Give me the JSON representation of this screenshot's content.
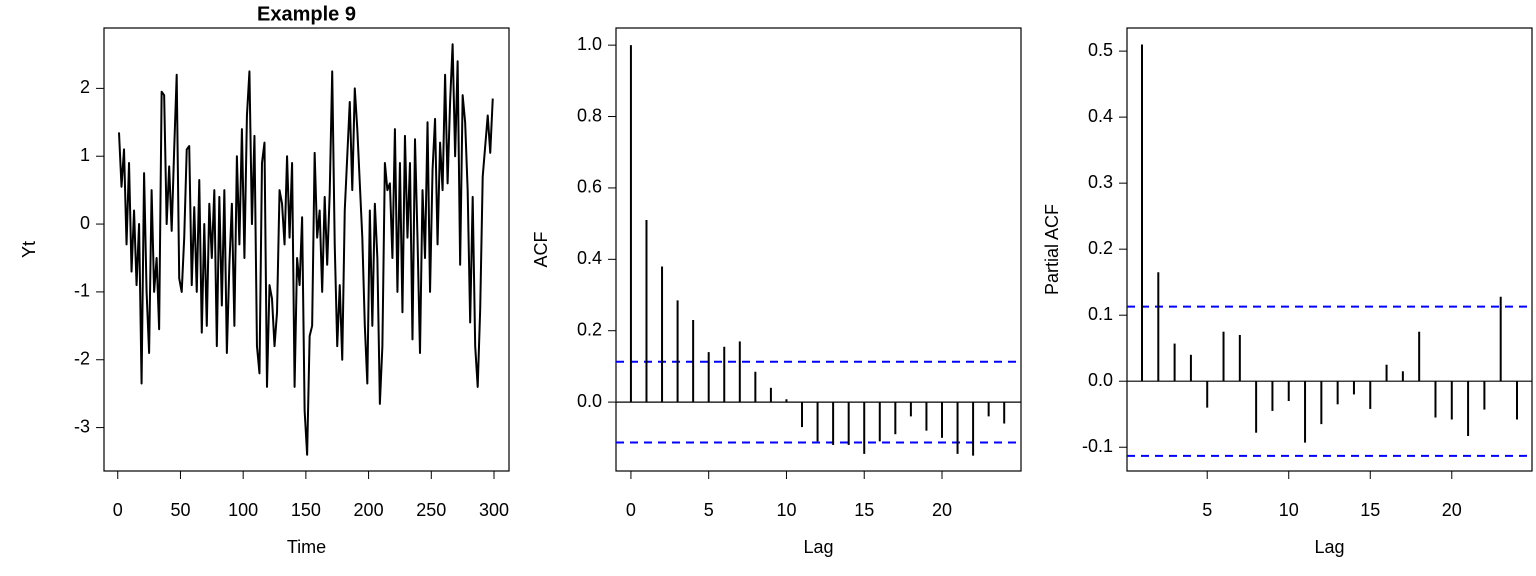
{
  "chart_data": [
    {
      "type": "line",
      "title": "Example 9",
      "xlabel": "Time",
      "ylabel": "Yt",
      "color": "#000000",
      "x": [
        1,
        3,
        5,
        7,
        9,
        11,
        13,
        15,
        17,
        19,
        21,
        23,
        25,
        27,
        29,
        31,
        33,
        35,
        37,
        39,
        41,
        43,
        45,
        47,
        49,
        51,
        53,
        55,
        57,
        59,
        61,
        63,
        65,
        67,
        69,
        71,
        73,
        75,
        77,
        79,
        81,
        83,
        85,
        87,
        89,
        91,
        93,
        95,
        97,
        99,
        101,
        103,
        105,
        107,
        109,
        111,
        113,
        115,
        117,
        119,
        121,
        123,
        125,
        127,
        129,
        131,
        133,
        135,
        137,
        139,
        141,
        143,
        145,
        147,
        149,
        151,
        153,
        155,
        157,
        159,
        161,
        163,
        165,
        167,
        169,
        171,
        173,
        175,
        177,
        179,
        181,
        183,
        185,
        187,
        189,
        191,
        193,
        195,
        197,
        199,
        201,
        203,
        205,
        207,
        209,
        211,
        213,
        215,
        217,
        219,
        221,
        223,
        225,
        227,
        229,
        231,
        233,
        235,
        237,
        239,
        241,
        243,
        245,
        247,
        249,
        251,
        253,
        255,
        257,
        259,
        261,
        263,
        265,
        267,
        269,
        271,
        273,
        275,
        277,
        279,
        281,
        283,
        285,
        287,
        289,
        291,
        293,
        295,
        297,
        299
      ],
      "values": [
        1.35,
        0.55,
        1.1,
        -0.3,
        0.9,
        -0.7,
        0.2,
        -0.9,
        0.0,
        -2.35,
        0.75,
        -1.0,
        -1.9,
        0.5,
        -1.0,
        -0.5,
        -1.55,
        1.95,
        1.9,
        0.0,
        0.85,
        -0.1,
        1.1,
        2.2,
        -0.8,
        -1.0,
        -0.2,
        1.1,
        1.15,
        -0.9,
        0.25,
        -1.0,
        0.65,
        -1.6,
        0.0,
        -1.5,
        0.3,
        -0.5,
        0.5,
        -1.8,
        0.4,
        -1.2,
        0.5,
        -1.9,
        -0.6,
        0.3,
        -1.5,
        1.0,
        -0.3,
        1.4,
        -0.5,
        1.6,
        2.25,
        0.0,
        1.3,
        -1.8,
        -2.2,
        0.9,
        1.2,
        -2.4,
        -0.9,
        -1.1,
        -1.8,
        -1.3,
        0.5,
        0.3,
        -0.3,
        1.0,
        -0.2,
        0.9,
        -2.4,
        -0.5,
        -0.9,
        0.1,
        -2.75,
        -3.4,
        -1.65,
        -1.5,
        1.05,
        -0.2,
        0.2,
        -1.0,
        0.4,
        -0.6,
        0.45,
        2.25,
        -0.3,
        -1.8,
        -0.9,
        -2.0,
        0.2,
        1.0,
        1.8,
        0.5,
        2.0,
        1.4,
        0.6,
        -0.2,
        -1.5,
        -2.35,
        0.2,
        -1.5,
        0.3,
        -0.5,
        -2.65,
        -1.8,
        0.9,
        0.5,
        0.6,
        -0.5,
        1.4,
        -1.0,
        0.9,
        -1.3,
        1.3,
        -0.2,
        0.9,
        -1.7,
        1.25,
        -0.2,
        -1.9,
        0.5,
        -0.5,
        1.5,
        -1.0,
        0.8,
        1.55,
        -0.3,
        1.2,
        0.5,
        2.2,
        0.6,
        1.8,
        2.65,
        1.0,
        2.4,
        -0.6,
        1.9,
        1.5,
        0.5,
        -1.45,
        0.4,
        -1.8,
        -2.4,
        -1.25,
        0.7,
        1.15,
        1.6,
        1.05,
        1.85
      ],
      "xlim": [
        -10.96,
        311.96
      ],
      "xticks": [
        0,
        50,
        100,
        150,
        200,
        250,
        300
      ],
      "ylim": [
        -3.64,
        2.89
      ],
      "yticks": [
        -3,
        -2,
        -1,
        0,
        1,
        2
      ]
    },
    {
      "type": "stem",
      "xlabel": "Lag",
      "ylabel": "ACF",
      "color": "#000000",
      "x": [
        0,
        1,
        2,
        3,
        4,
        5,
        6,
        7,
        8,
        9,
        10,
        11,
        12,
        13,
        14,
        15,
        16,
        17,
        18,
        19,
        20,
        21,
        22,
        23,
        24
      ],
      "values": [
        1.0,
        0.51,
        0.38,
        0.285,
        0.23,
        0.14,
        0.155,
        0.17,
        0.085,
        0.04,
        0.008,
        -0.07,
        -0.11,
        -0.12,
        -0.12,
        -0.145,
        -0.11,
        -0.09,
        -0.04,
        -0.08,
        -0.1,
        -0.145,
        -0.15,
        -0.04,
        -0.06
      ],
      "hlines": [
        0.113,
        -0.113
      ],
      "hline_color": "#0000ff",
      "xlim": [
        -0.96,
        25.08
      ],
      "xticks": [
        0,
        5,
        10,
        15,
        20
      ],
      "ylim": [
        -0.193,
        1.048
      ],
      "yticks": [
        {
          "value": 0,
          "label": "0.0"
        },
        0.2,
        0.4,
        0.6,
        0.8,
        {
          "value": 1,
          "label": "1.0"
        }
      ]
    },
    {
      "type": "stem",
      "xlabel": "Lag",
      "ylabel": "Partial ACF",
      "color": "#000000",
      "x": [
        1,
        2,
        3,
        4,
        5,
        6,
        7,
        8,
        9,
        10,
        11,
        12,
        13,
        14,
        15,
        16,
        17,
        18,
        19,
        20,
        21,
        22,
        23,
        24
      ],
      "values": [
        0.51,
        0.165,
        0.057,
        0.04,
        -0.04,
        0.075,
        0.07,
        -0.078,
        -0.045,
        -0.03,
        -0.093,
        -0.065,
        -0.035,
        -0.02,
        -0.042,
        0.025,
        0.015,
        0.075,
        -0.055,
        -0.058,
        -0.083,
        -0.043,
        0.128,
        -0.058
      ],
      "hlines": [
        0.113,
        -0.113
      ],
      "hline_color": "#0000ff",
      "xlim": [
        0.08,
        24.92
      ],
      "xticks": [
        5,
        10,
        15,
        20
      ],
      "ylim": [
        -0.136,
        0.535
      ],
      "yticks": [
        -0.1,
        {
          "value": 0,
          "label": "0.0"
        },
        0.1,
        0.2,
        0.3,
        0.4,
        0.5
      ]
    }
  ]
}
